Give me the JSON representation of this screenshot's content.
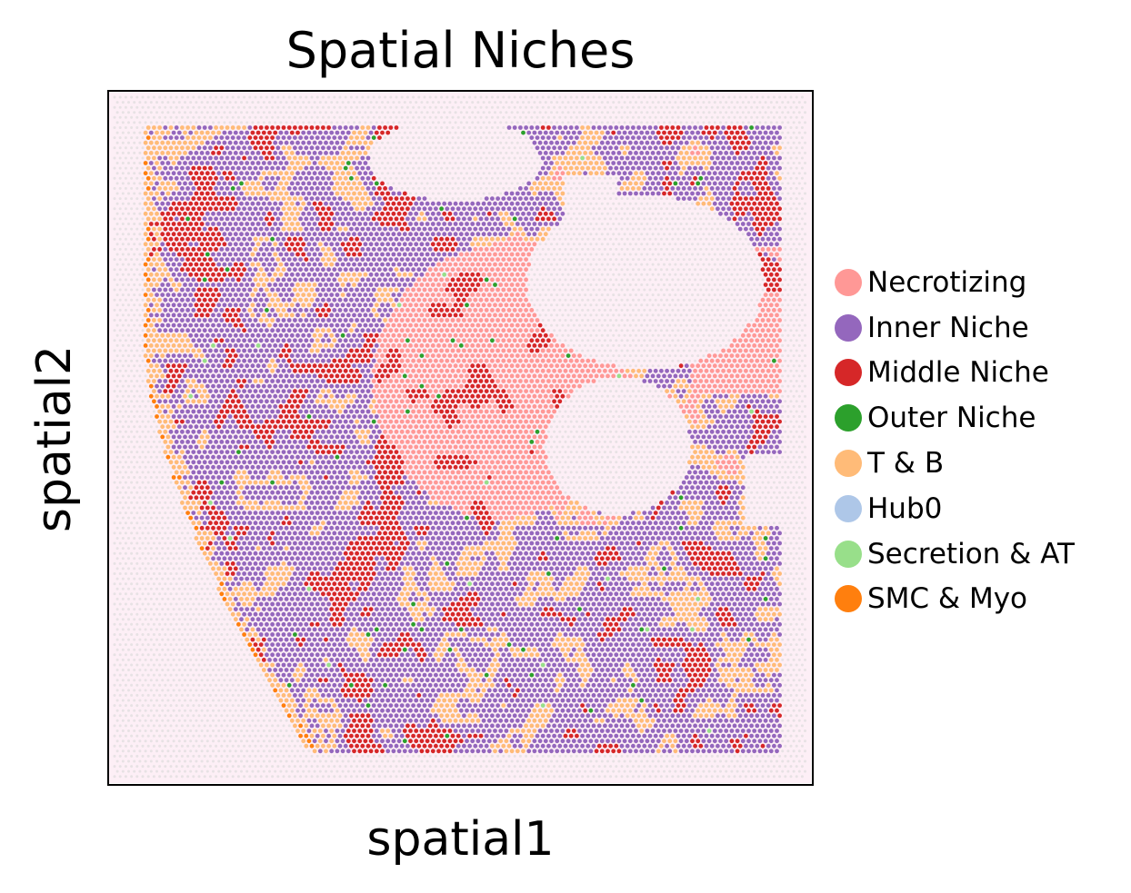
{
  "chart_data": {
    "type": "scatter",
    "title": "Spatial Niches",
    "xlabel": "spatial1",
    "ylabel": "spatial2",
    "grid": false,
    "ticks": false,
    "legend_placement": "right",
    "background": "tissue histology image with spots colored by niche; unassigned spots light grey",
    "categories": [
      {
        "name": "Necrotizing",
        "color": "#ff9896"
      },
      {
        "name": "Inner Niche",
        "color": "#9467bd"
      },
      {
        "name": "Middle Niche",
        "color": "#d62728"
      },
      {
        "name": "Outer Niche",
        "color": "#2ca02c"
      },
      {
        "name": "T & B",
        "color": "#ffbb78"
      },
      {
        "name": "Hub0",
        "color": "#aec7e8"
      },
      {
        "name": "Secretion & AT",
        "color": "#98df8a"
      },
      {
        "name": "SMC & Myo",
        "color": "#ff7f0e"
      }
    ],
    "colors": {
      "tissue_background": "#fbe2ee",
      "unassigned_spot": "#d9d9d9"
    }
  }
}
